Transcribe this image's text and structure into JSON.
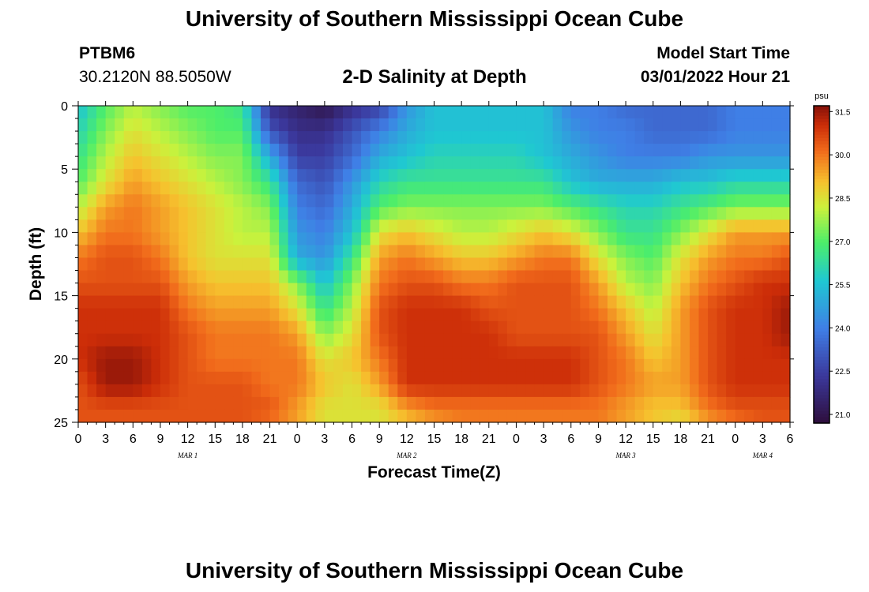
{
  "header": {
    "title": "University of Southern Mississippi Ocean Cube",
    "station_id": "PTBM6",
    "coords": "30.2120N  88.5050W",
    "plot_title": "2-D Salinity at Depth",
    "model_start_label": "Model Start Time",
    "model_start_value": "03/01/2022 Hour 21"
  },
  "footer": {
    "title": "University of Southern Mississippi Ocean Cube"
  },
  "colors": {
    "background": "#ffffff",
    "axis": "#000000"
  },
  "chart_data": {
    "type": "heatmap",
    "title": "2-D Salinity at Depth",
    "xlabel": "Forecast Time(Z)",
    "ylabel": "Depth (ft)",
    "x_unit": "hours since 03/01 00Z",
    "x_range": [
      0,
      78
    ],
    "x_ticks": [
      0,
      3,
      6,
      9,
      12,
      15,
      18,
      21,
      24,
      27,
      30,
      33,
      36,
      39,
      42,
      45,
      48,
      51,
      54,
      57,
      60,
      63,
      66,
      69,
      72,
      75,
      78
    ],
    "x_tick_labels": [
      "0",
      "3",
      "6",
      "9",
      "12",
      "15",
      "18",
      "21",
      "0",
      "3",
      "6",
      "9",
      "12",
      "15",
      "18",
      "21",
      "0",
      "3",
      "6",
      "9",
      "12",
      "15",
      "18",
      "21",
      "0",
      "3",
      "6"
    ],
    "date_labels": [
      {
        "x": 12,
        "label": "MAR 1"
      },
      {
        "x": 36,
        "label": "MAR 2"
      },
      {
        "x": 60,
        "label": "MAR 3"
      },
      {
        "x": 75,
        "label": "MAR 4"
      }
    ],
    "y_range": [
      0,
      25
    ],
    "y_ticks": [
      0,
      5,
      10,
      15,
      20,
      25
    ],
    "y_inverted": true,
    "colorbar": {
      "unit": "psu",
      "range": [
        20.7,
        31.7
      ],
      "ticks": [
        31.5,
        30.0,
        28.5,
        27.0,
        25.5,
        24.0,
        22.5,
        21.0
      ],
      "tick_labels": [
        "31.5",
        "30.0",
        "28.5",
        "27.0",
        "25.5",
        "24.0",
        "22.5",
        "21.0"
      ]
    },
    "grid": {
      "time_step_h": 1,
      "depth_step_ft": 1,
      "times": [
        0,
        3,
        6,
        9,
        12,
        15,
        18,
        21,
        24,
        27,
        30,
        33,
        36,
        39,
        42,
        45,
        48,
        51,
        54,
        57,
        60,
        63,
        66,
        69,
        72,
        75,
        78
      ],
      "depths": [
        0,
        2,
        4,
        6,
        8,
        10,
        12,
        14,
        16,
        18,
        20,
        22,
        24,
        25
      ],
      "values": [
        [
          25.5,
          27.0,
          28.0,
          27.5,
          27.0,
          27.0,
          26.5,
          22.0,
          21.5,
          21.0,
          22.0,
          22.5,
          24.5,
          25.5,
          25.5,
          25.5,
          25.5,
          25.5,
          24.0,
          24.0,
          23.5,
          23.5,
          23.5,
          23.5,
          24.0,
          24.0,
          24.0
        ],
        [
          26.0,
          27.5,
          28.5,
          28.0,
          27.5,
          27.0,
          27.0,
          23.0,
          22.0,
          22.0,
          23.0,
          24.0,
          25.0,
          25.5,
          25.5,
          25.5,
          25.5,
          25.5,
          24.5,
          24.0,
          24.0,
          23.5,
          23.5,
          23.5,
          24.0,
          24.0,
          24.0
        ],
        [
          26.5,
          28.0,
          29.0,
          28.5,
          28.0,
          27.5,
          27.5,
          25.0,
          22.5,
          22.5,
          23.5,
          25.0,
          25.5,
          26.0,
          26.0,
          26.0,
          26.0,
          25.5,
          25.0,
          24.5,
          24.0,
          24.0,
          24.0,
          24.5,
          24.5,
          24.5,
          24.5
        ],
        [
          27.0,
          28.5,
          29.5,
          29.0,
          28.5,
          28.0,
          27.5,
          26.5,
          23.5,
          23.0,
          24.5,
          26.0,
          26.5,
          26.5,
          26.5,
          26.5,
          26.5,
          26.5,
          25.5,
          25.0,
          25.0,
          25.0,
          25.5,
          25.5,
          26.0,
          26.0,
          26.0
        ],
        [
          28.0,
          29.5,
          30.0,
          29.5,
          29.0,
          28.5,
          28.0,
          27.5,
          24.0,
          23.5,
          25.0,
          27.0,
          27.5,
          27.5,
          27.5,
          27.5,
          27.5,
          27.5,
          27.0,
          26.5,
          26.0,
          26.0,
          26.5,
          27.0,
          27.5,
          27.5,
          27.5
        ],
        [
          29.0,
          30.0,
          30.0,
          29.5,
          29.0,
          28.5,
          28.0,
          28.0,
          24.5,
          24.0,
          25.5,
          28.5,
          29.0,
          28.5,
          28.0,
          28.0,
          28.5,
          29.0,
          28.5,
          27.5,
          26.5,
          26.5,
          27.5,
          28.5,
          29.5,
          29.5,
          29.5
        ],
        [
          30.0,
          30.5,
          30.5,
          30.0,
          29.0,
          28.5,
          28.5,
          28.5,
          25.0,
          24.5,
          26.5,
          29.5,
          30.0,
          29.5,
          29.0,
          29.0,
          29.5,
          30.0,
          30.0,
          28.5,
          27.5,
          27.0,
          28.5,
          29.5,
          30.0,
          30.0,
          30.5
        ],
        [
          30.5,
          30.5,
          30.5,
          30.5,
          29.5,
          29.0,
          29.0,
          29.0,
          27.5,
          25.5,
          27.5,
          30.0,
          30.5,
          30.5,
          30.0,
          30.0,
          30.5,
          30.5,
          30.5,
          29.5,
          28.0,
          27.5,
          29.0,
          30.0,
          30.5,
          31.0,
          31.0
        ],
        [
          31.0,
          31.0,
          31.0,
          31.0,
          30.0,
          29.5,
          29.5,
          29.5,
          28.5,
          26.5,
          28.0,
          30.5,
          31.0,
          31.0,
          31.0,
          30.5,
          30.5,
          30.5,
          30.5,
          30.0,
          29.0,
          28.0,
          29.5,
          30.5,
          31.0,
          31.0,
          31.5
        ],
        [
          31.0,
          31.0,
          31.0,
          31.0,
          30.5,
          30.0,
          30.0,
          30.0,
          29.5,
          27.5,
          28.5,
          30.5,
          31.0,
          31.0,
          31.0,
          31.0,
          30.5,
          30.5,
          30.5,
          30.5,
          29.5,
          28.5,
          29.5,
          30.5,
          31.0,
          31.0,
          31.5
        ],
        [
          31.0,
          31.5,
          31.5,
          31.0,
          30.5,
          30.0,
          30.0,
          30.0,
          30.0,
          28.5,
          29.0,
          30.0,
          31.0,
          31.0,
          31.0,
          31.0,
          31.0,
          31.0,
          31.0,
          30.5,
          30.0,
          29.0,
          29.5,
          30.5,
          31.0,
          31.0,
          31.0
        ],
        [
          30.5,
          31.5,
          31.5,
          31.0,
          30.5,
          30.5,
          30.5,
          30.0,
          30.0,
          29.0,
          28.5,
          29.5,
          31.0,
          31.0,
          31.0,
          31.0,
          31.0,
          31.0,
          31.0,
          30.5,
          30.0,
          29.5,
          29.5,
          30.5,
          31.0,
          31.0,
          31.0
        ],
        [
          30.5,
          30.5,
          30.5,
          30.5,
          30.5,
          30.5,
          30.5,
          30.5,
          29.5,
          28.5,
          28.5,
          28.5,
          29.5,
          30.0,
          30.0,
          30.0,
          30.0,
          30.0,
          30.0,
          30.0,
          29.5,
          29.0,
          29.0,
          30.0,
          30.5,
          30.5,
          30.5
        ],
        [
          30.5,
          30.5,
          30.5,
          30.5,
          30.5,
          30.5,
          30.5,
          30.0,
          29.5,
          28.5,
          28.5,
          28.5,
          29.0,
          29.5,
          30.0,
          30.0,
          30.0,
          30.0,
          30.0,
          30.0,
          29.5,
          29.0,
          28.5,
          29.5,
          30.0,
          30.5,
          30.5
        ]
      ]
    }
  }
}
